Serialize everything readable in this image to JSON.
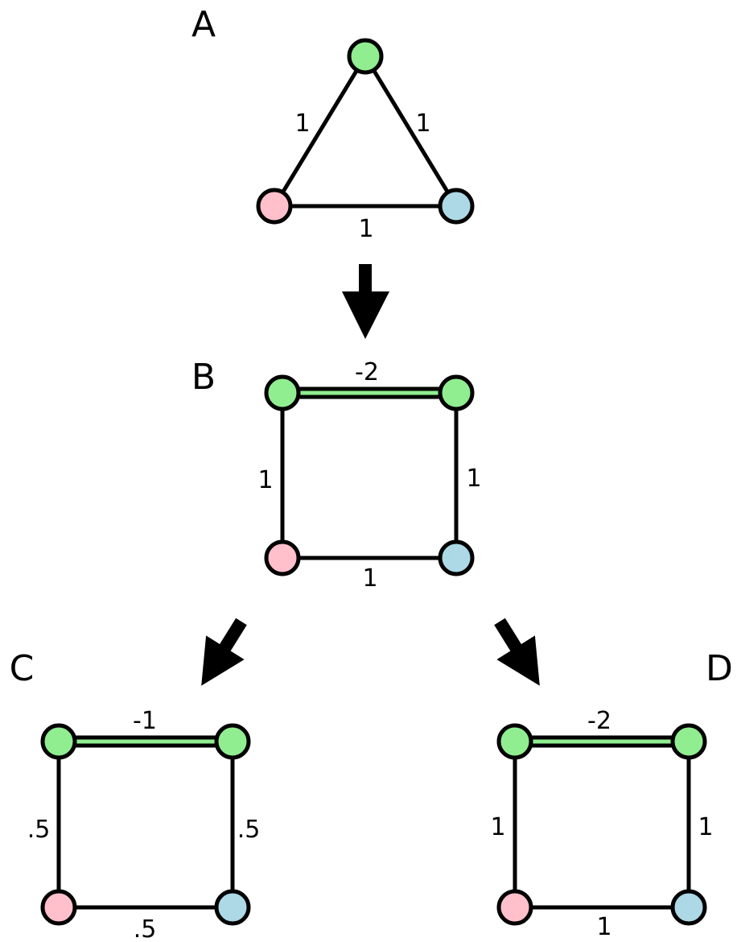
{
  "colors": {
    "green": "#90ee90",
    "pink": "#ffc0cb",
    "blue": "#add8e6",
    "stroke": "#000000"
  },
  "panels": {
    "A": {
      "letter": "A",
      "nodes": [
        "green",
        "pink",
        "blue"
      ],
      "edges": [
        {
          "label": "1",
          "kind": "plain"
        },
        {
          "label": "1",
          "kind": "plain"
        },
        {
          "label": "1",
          "kind": "plain"
        }
      ]
    },
    "B": {
      "letter": "B",
      "nodes": [
        "green",
        "green",
        "pink",
        "blue"
      ],
      "edges": [
        {
          "label": "-2",
          "kind": "green"
        },
        {
          "label": "1",
          "kind": "plain"
        },
        {
          "label": "1",
          "kind": "plain"
        },
        {
          "label": "1",
          "kind": "plain"
        }
      ]
    },
    "C": {
      "letter": "C",
      "nodes": [
        "green",
        "green",
        "pink",
        "blue"
      ],
      "edges": [
        {
          "label": "-1",
          "kind": "green"
        },
        {
          "label": ".5",
          "kind": "plain"
        },
        {
          "label": ".5",
          "kind": "plain"
        },
        {
          "label": ".5",
          "kind": "plain"
        }
      ]
    },
    "D": {
      "letter": "D",
      "nodes": [
        "green",
        "green",
        "pink",
        "blue"
      ],
      "edges": [
        {
          "label": "-2",
          "kind": "green"
        },
        {
          "label": "1",
          "kind": "plain"
        },
        {
          "label": "1",
          "kind": "plain"
        },
        {
          "label": "1",
          "kind": "plain"
        }
      ]
    }
  },
  "arrows": [
    "A-to-B",
    "B-to-C",
    "B-to-D"
  ]
}
